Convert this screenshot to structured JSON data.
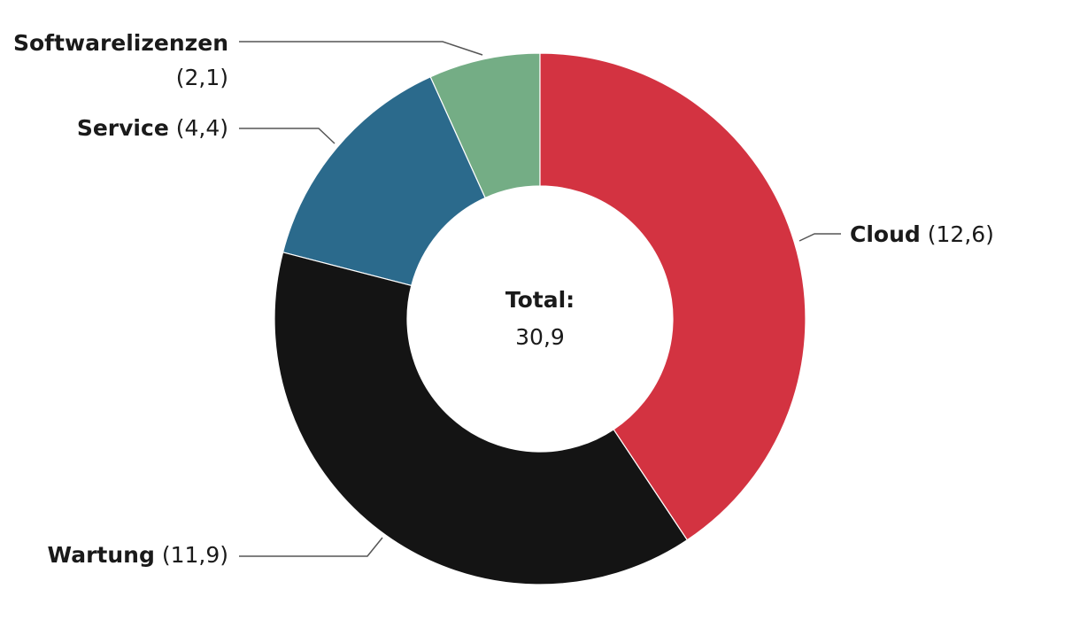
{
  "chart_data": {
    "type": "donut",
    "categories": [
      "Cloud",
      "Wartung",
      "Service",
      "Softwarelizenzen"
    ],
    "values": [
      12.6,
      11.9,
      4.4,
      2.1
    ],
    "value_labels": [
      "(12,6)",
      "(11,9)",
      "(4,4)",
      "(2,1)"
    ],
    "colors": [
      "#d33341",
      "#141414",
      "#2b6a8c",
      "#74ad85"
    ],
    "center_title": "Total:",
    "total": {
      "value": 30.9,
      "label": "30,9"
    }
  }
}
